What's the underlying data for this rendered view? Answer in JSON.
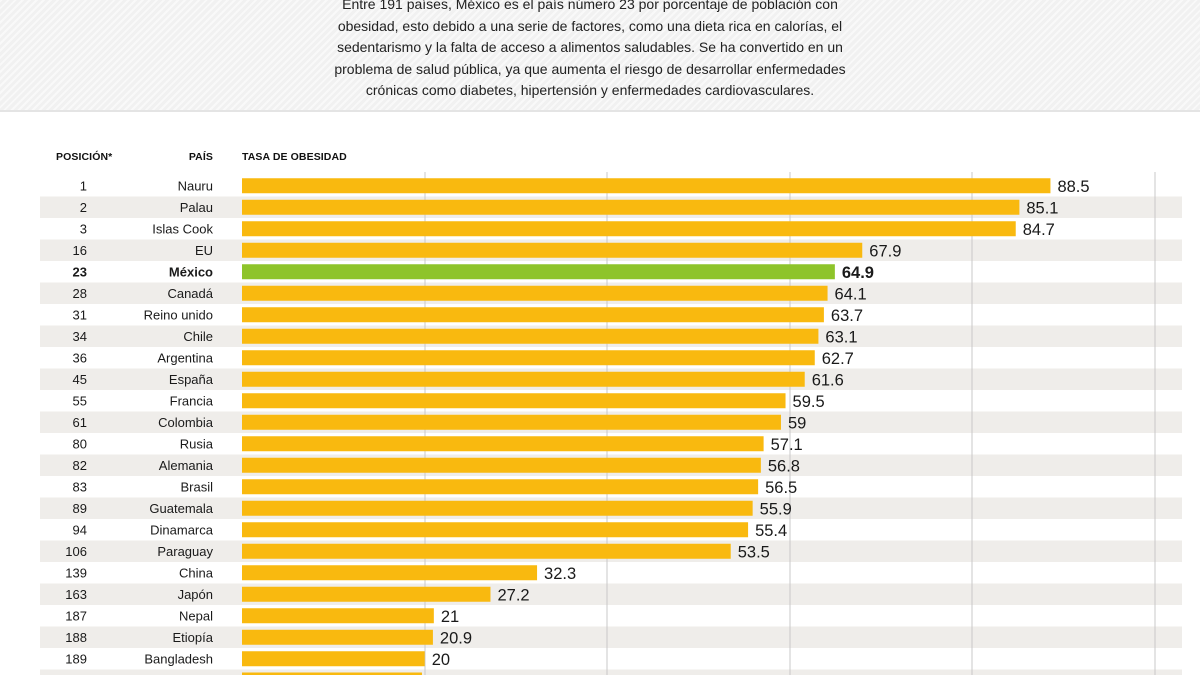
{
  "intro": {
    "lines": [
      "Entre 191 países, México es el país número 23 por porcentaje de población con",
      "obesidad,  esto debido a una serie de factores, como una dieta rica en calorías, el",
      "sedentarismo y la falta de acceso a alimentos saludables. Se ha convertido en un",
      "problema de salud pública, ya que aumenta el riesgo de desarrollar enfermedades",
      "crónicas como diabetes, hipertensión y enfermedades cardiovasculares."
    ]
  },
  "headers": {
    "position": "POSICIÓN*",
    "country": "PAÍS",
    "rate": "TASA DE OBESIDAD"
  },
  "colors": {
    "bar": "#f9b90f",
    "highlight": "#8ec42a",
    "stripe": "#efedea",
    "grid": "#c8c8c8"
  },
  "chart_data": {
    "type": "bar",
    "orientation": "horizontal",
    "title": "TASA DE OBESIDAD",
    "xlim": [
      0,
      100
    ],
    "highlight": "México",
    "rows": [
      {
        "position": "1",
        "country": "Nauru",
        "value": 88.5
      },
      {
        "position": "2",
        "country": "Palau",
        "value": 85.1
      },
      {
        "position": "3",
        "country": "Islas Cook",
        "value": 84.7
      },
      {
        "position": "16",
        "country": "EU",
        "value": 67.9
      },
      {
        "position": "23",
        "country": "México",
        "value": 64.9
      },
      {
        "position": "28",
        "country": "Canadá",
        "value": 64.1
      },
      {
        "position": "31",
        "country": "Reino unido",
        "value": 63.7
      },
      {
        "position": "34",
        "country": "Chile",
        "value": 63.1
      },
      {
        "position": "36",
        "country": "Argentina",
        "value": 62.7
      },
      {
        "position": "45",
        "country": "España",
        "value": 61.6
      },
      {
        "position": "55",
        "country": "Francia",
        "value": 59.5
      },
      {
        "position": "61",
        "country": "Colombia",
        "value": 59
      },
      {
        "position": "80",
        "country": "Rusia",
        "value": 57.1
      },
      {
        "position": "82",
        "country": "Alemania",
        "value": 56.8
      },
      {
        "position": "83",
        "country": "Brasil",
        "value": 56.5
      },
      {
        "position": "89",
        "country": "Guatemala",
        "value": 55.9
      },
      {
        "position": "94",
        "country": "Dinamarca",
        "value": 55.4
      },
      {
        "position": "106",
        "country": "Paraguay",
        "value": 53.5
      },
      {
        "position": "139",
        "country": "China",
        "value": 32.3
      },
      {
        "position": "163",
        "country": "Japón",
        "value": 27.2
      },
      {
        "position": "187",
        "country": "Nepal",
        "value": 21
      },
      {
        "position": "188",
        "country": "Etiopía",
        "value": 20.9
      },
      {
        "position": "189",
        "country": "Bangladesh",
        "value": 20
      }
    ]
  }
}
